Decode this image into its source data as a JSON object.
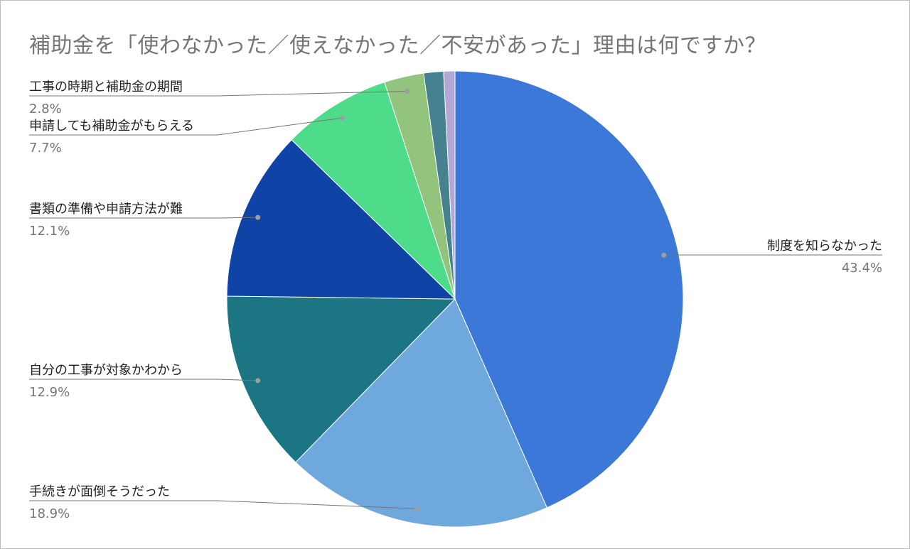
{
  "chart_data": {
    "type": "pie",
    "title": "補助金を「使わなかった／使えなかった／不安があった」理由は何ですか？",
    "slices": [
      {
        "label": "制度を知らなかった",
        "value": 43.4,
        "pct_label": "43.4%",
        "color": "#3c78d8"
      },
      {
        "label": "手続きが面倒そうだった",
        "value": 18.9,
        "pct_label": "18.9%",
        "color": "#6fa8dc"
      },
      {
        "label": "自分の工事が対象かわから",
        "value": 12.9,
        "pct_label": "12.9%",
        "color": "#1c7583"
      },
      {
        "label": "書類の準備や申請方法が難",
        "value": 12.1,
        "pct_label": "12.1%",
        "color": "#0f43a6"
      },
      {
        "label": "申請しても補助金がもらえる",
        "value": 7.7,
        "pct_label": "7.7%",
        "color": "#4fdc8a"
      },
      {
        "label": "工事の時期と補助金の期間",
        "value": 2.8,
        "pct_label": "2.8%",
        "color": "#93c47d"
      },
      {
        "label": "",
        "value": 1.4,
        "pct_label": "",
        "color": "#45818e"
      },
      {
        "label": "",
        "value": 0.8,
        "pct_label": "",
        "color": "#b4a7d6"
      }
    ],
    "legend": "none"
  }
}
